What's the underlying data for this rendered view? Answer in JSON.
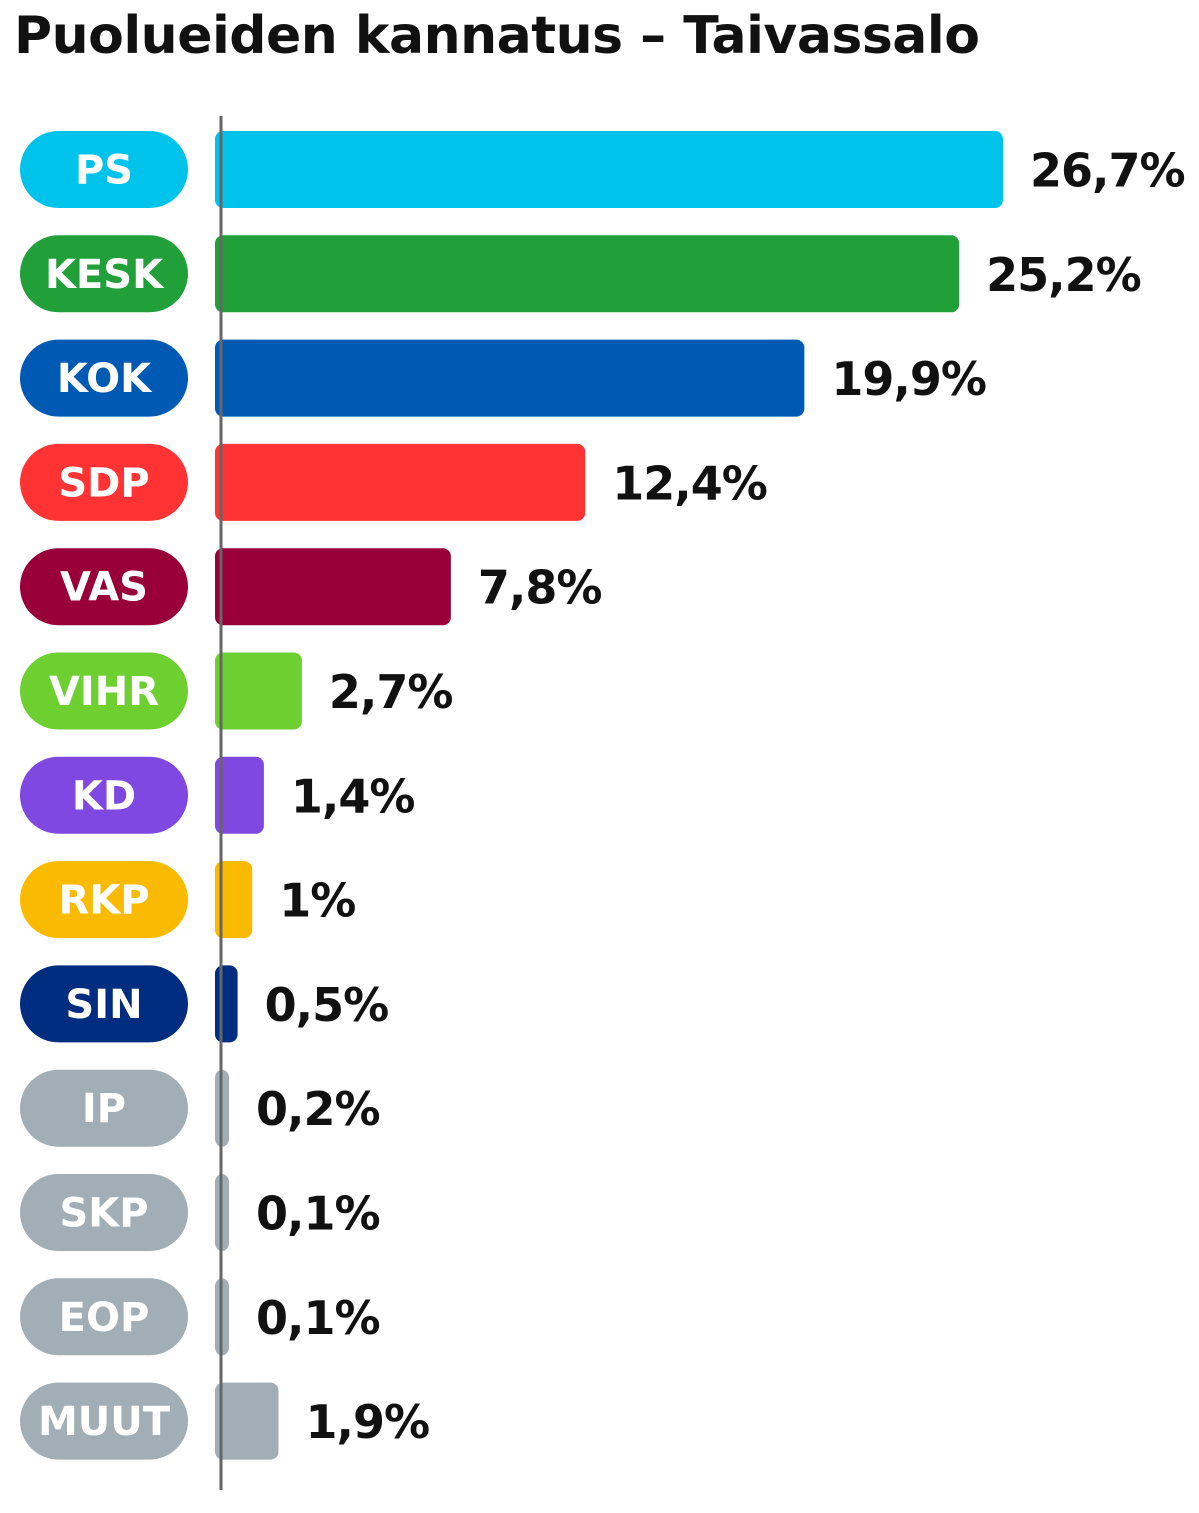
{
  "chart_data": {
    "type": "bar",
    "orientation": "horizontal",
    "title": "Puolueiden kannatus – Taivassalo",
    "xlabel": "",
    "ylabel": "",
    "xlim": [
      0,
      26.7
    ],
    "grid": false,
    "legend": "none",
    "value_suffix": "%",
    "categories": [
      "PS",
      "KESK",
      "KOK",
      "SDP",
      "VAS",
      "VIHR",
      "KD",
      "RKP",
      "SIN",
      "IP",
      "SKP",
      "EOP",
      "MUUT"
    ],
    "values": [
      26.7,
      25.2,
      19.9,
      12.4,
      7.8,
      2.7,
      1.4,
      1,
      0.5,
      0.2,
      0.1,
      0.1,
      1.9
    ],
    "value_labels": [
      "26,7%",
      "25,2%",
      "19,9%",
      "12,4%",
      "7,8%",
      "2,7%",
      "1,4%",
      "1%",
      "0,5%",
      "0,2%",
      "0,1%",
      "0,1%",
      "1,9%"
    ],
    "colors": [
      "#00C3EB",
      "#21A03A",
      "#005AB4",
      "#FF3333",
      "#990039",
      "#6DCF30",
      "#7F48E0",
      "#F9BA00",
      "#002D80",
      "#A1AEB6",
      "#A1AEB6",
      "#A1AEB6",
      "#A1AEB6"
    ]
  }
}
